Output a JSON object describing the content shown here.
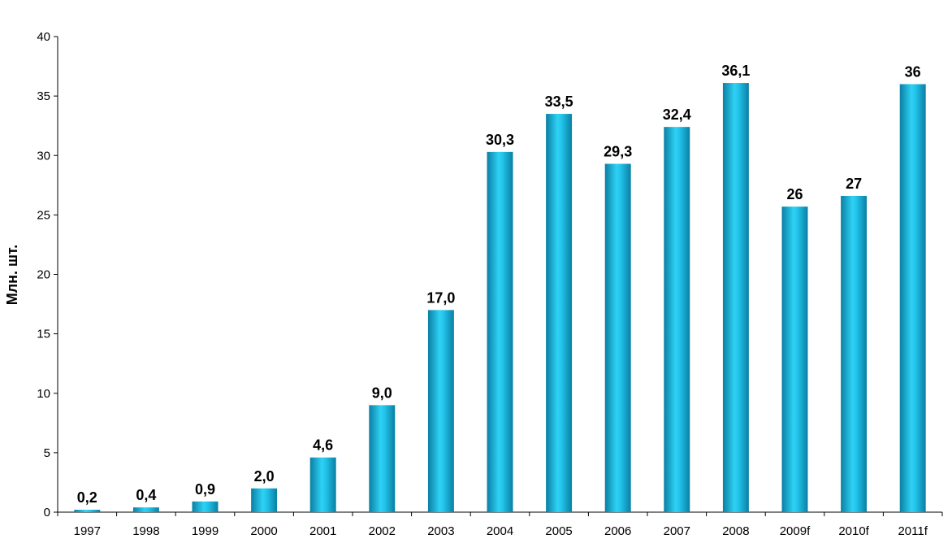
{
  "chart_data": {
    "type": "bar",
    "title": "",
    "xlabel": "",
    "ylabel": "Млн. шт.",
    "ylim": [
      0,
      40
    ],
    "yticks": [
      0,
      5,
      10,
      15,
      20,
      25,
      30,
      35,
      40
    ],
    "grid": false,
    "legend": "none",
    "categories": [
      "1997",
      "1998",
      "1999",
      "2000",
      "2001",
      "2002",
      "2003",
      "2004",
      "2005",
      "2006",
      "2007",
      "2008",
      "2009f",
      "2010f",
      "2011f"
    ],
    "values": [
      0.2,
      0.4,
      0.9,
      2.0,
      4.6,
      9.0,
      17.0,
      30.3,
      33.5,
      29.3,
      32.4,
      36.1,
      25.7,
      26.6,
      36.0
    ],
    "data_labels": [
      "0,2",
      "0,4",
      "0,9",
      "2,0",
      "4,6",
      "9,0",
      "17,0",
      "30,3",
      "33,5",
      "29,3",
      "32,4",
      "36,1",
      "26",
      "27",
      "36"
    ],
    "colors": {
      "bar_edge": "#0a7fa3",
      "bar_center": "#2ed2f5",
      "axis": "#000000"
    }
  }
}
